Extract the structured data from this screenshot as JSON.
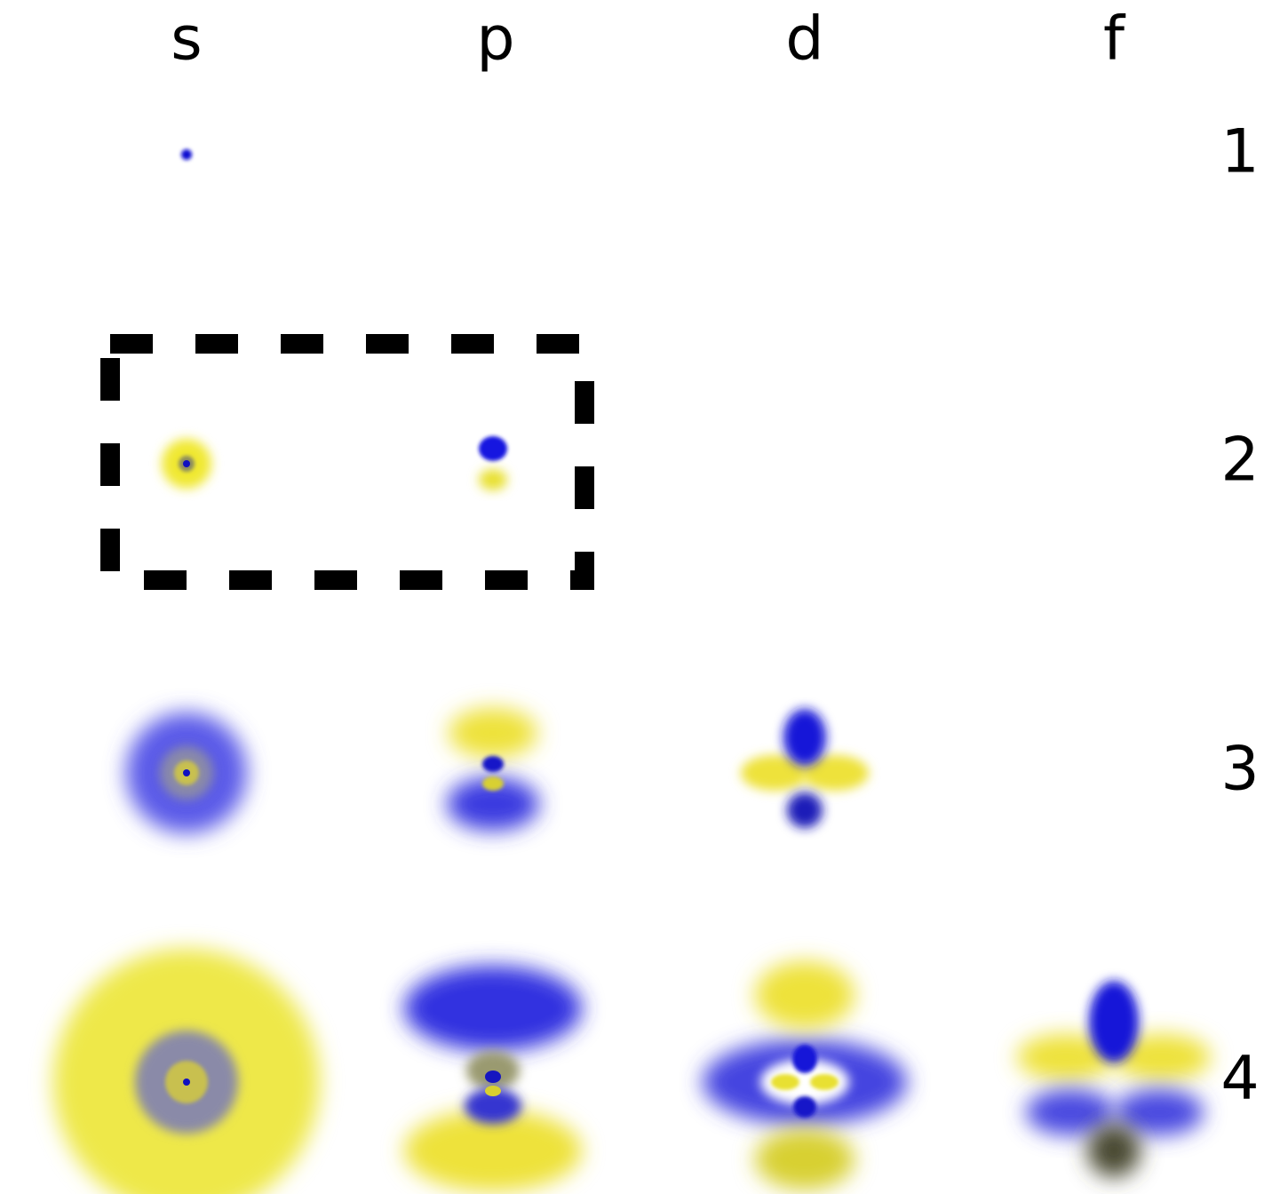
{
  "columns": [
    "s",
    "p",
    "d",
    "f"
  ],
  "rows": [
    "1",
    "2",
    "3",
    "4"
  ]
}
